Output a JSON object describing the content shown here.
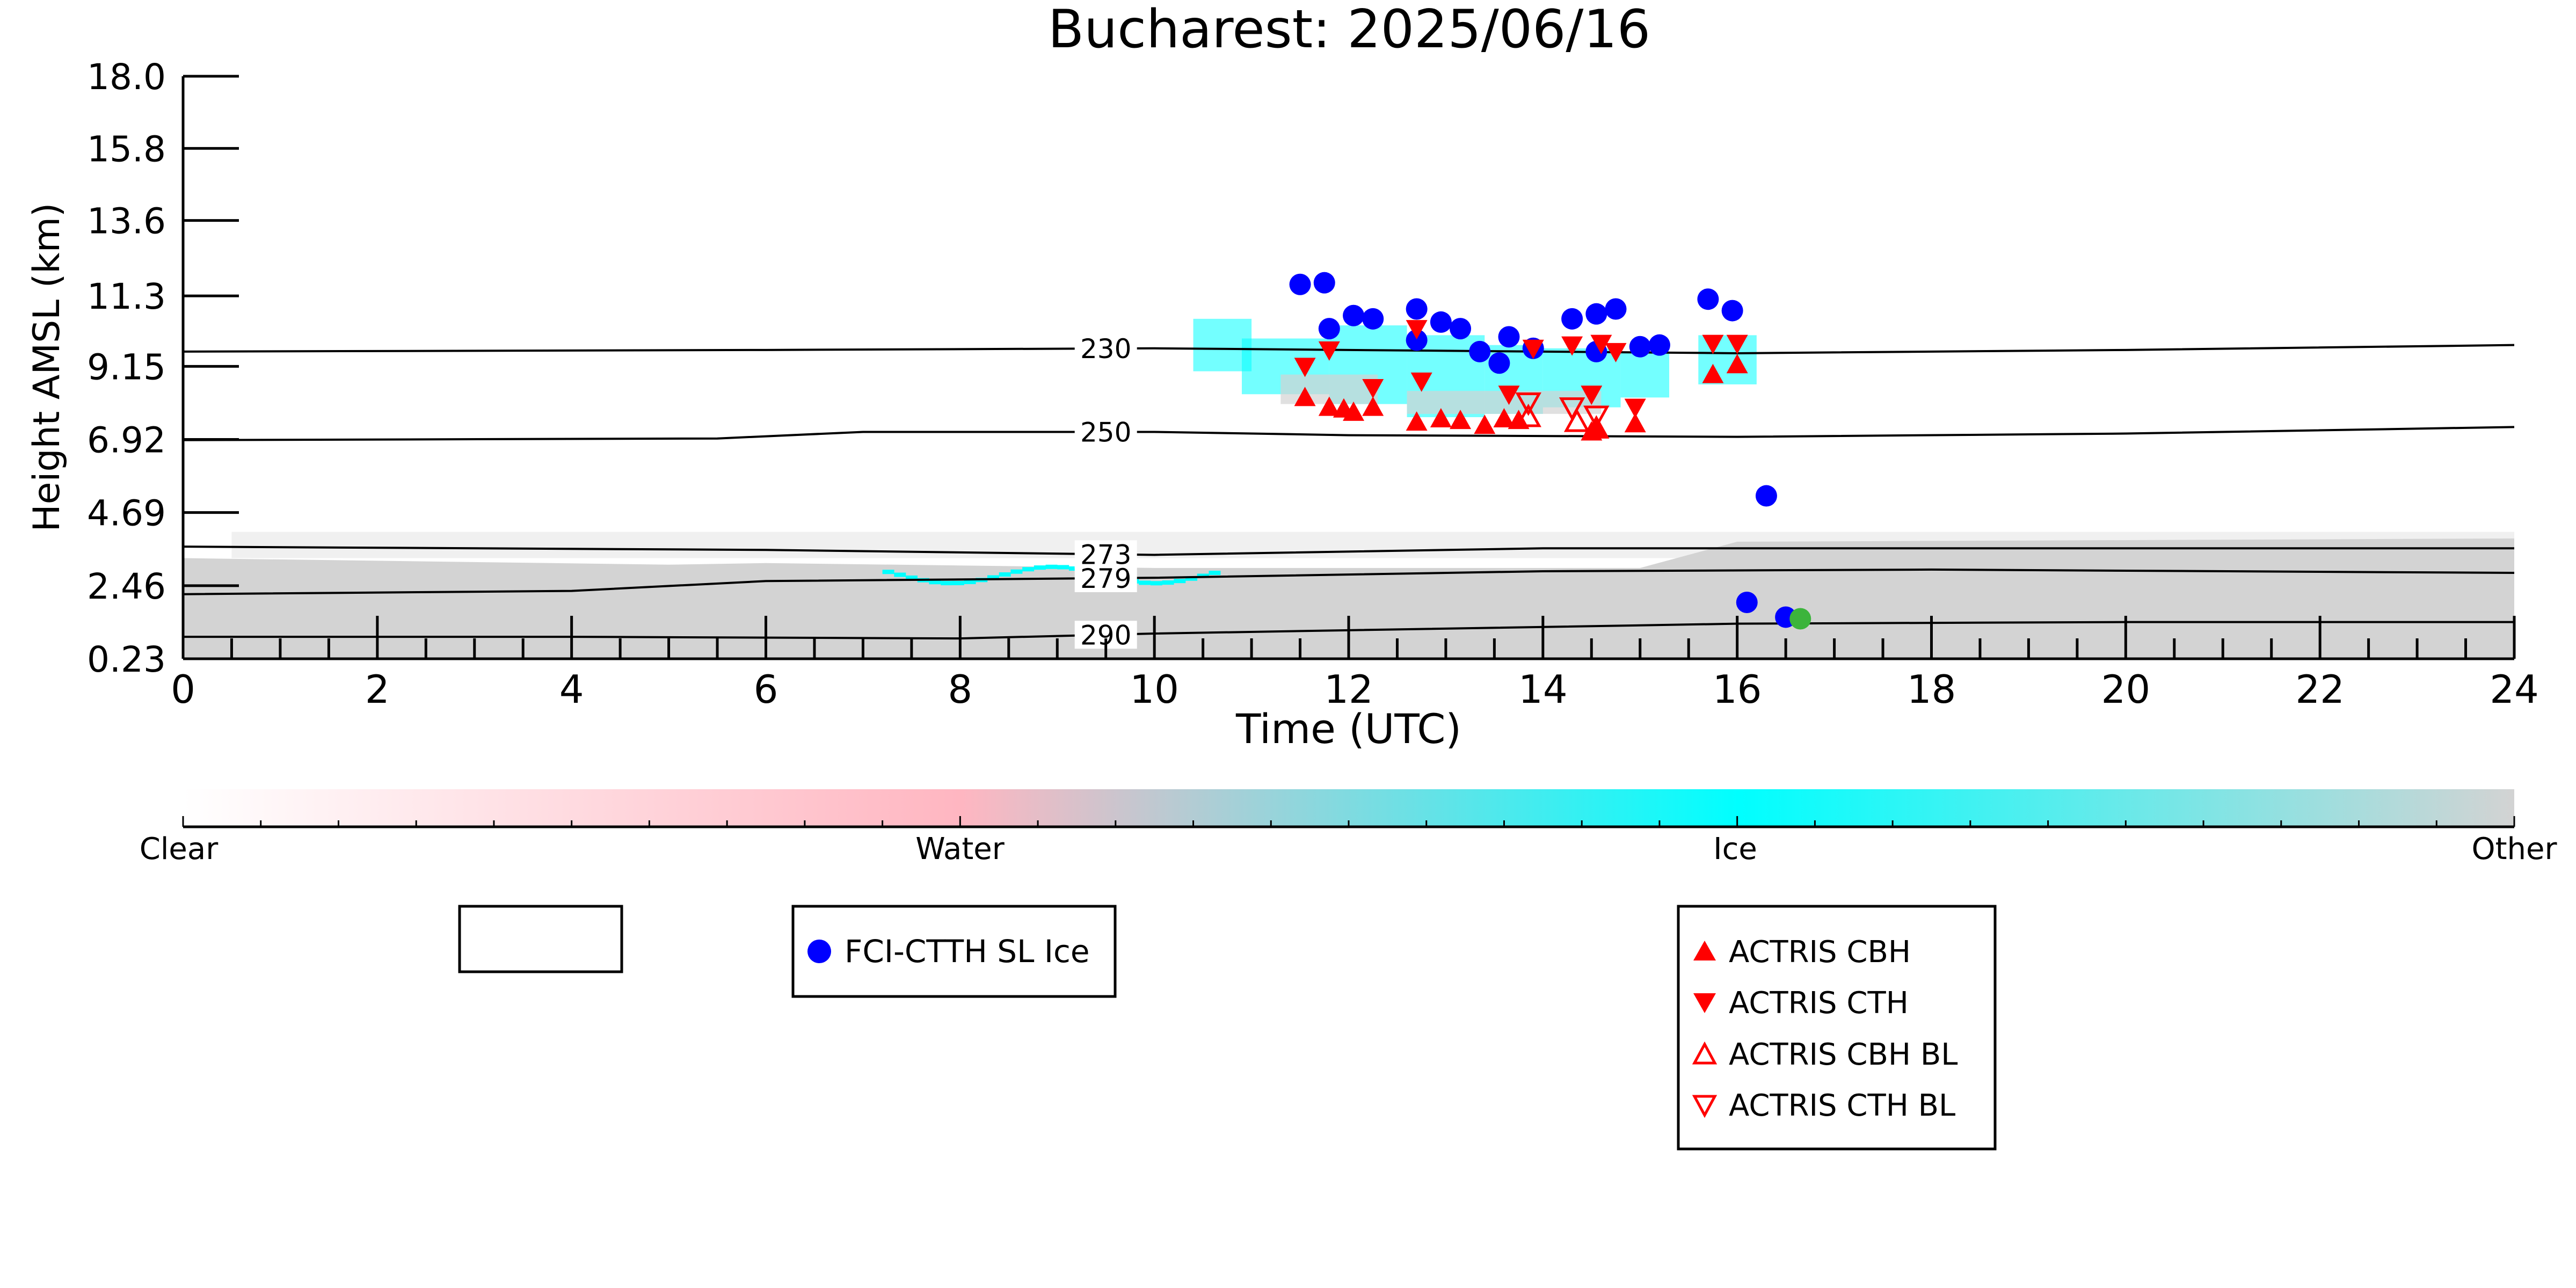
{
  "chart_data": {
    "type": "scatter",
    "title": "Bucharest: 2025/06/16",
    "xlabel": "Time (UTC)",
    "ylabel": "Height AMSL (km)",
    "xlim": [
      0,
      24
    ],
    "ylim": [
      0.23,
      18.0
    ],
    "x_ticks": [
      0,
      2,
      4,
      6,
      8,
      10,
      12,
      14,
      16,
      18,
      20,
      22,
      24
    ],
    "x_tick_labels": [
      "0",
      "2",
      "4",
      "6",
      "8",
      "10",
      "12",
      "14",
      "16",
      "18",
      "20",
      "22",
      "24"
    ],
    "y_ticks": [
      0.23,
      2.46,
      4.69,
      6.92,
      9.15,
      11.3,
      13.6,
      15.8,
      18.0
    ],
    "y_tick_labels": [
      "0.23",
      "2.46",
      "4.69",
      "6.92",
      "9.15",
      "11.3",
      "13.6",
      "15.8",
      "18.0"
    ],
    "grid": false,
    "isotherms": [
      {
        "label": "230",
        "points": [
          [
            0,
            9.6
          ],
          [
            6,
            9.65
          ],
          [
            10,
            9.7
          ],
          [
            12,
            9.65
          ],
          [
            16,
            9.55
          ],
          [
            20,
            9.65
          ],
          [
            24,
            9.8
          ]
        ]
      },
      {
        "label": "250",
        "points": [
          [
            0,
            6.9
          ],
          [
            5.5,
            6.95
          ],
          [
            7,
            7.15
          ],
          [
            10,
            7.15
          ],
          [
            12,
            7.05
          ],
          [
            16,
            7.0
          ],
          [
            20,
            7.1
          ],
          [
            24,
            7.3
          ]
        ]
      },
      {
        "label": "273",
        "points": [
          [
            0,
            3.65
          ],
          [
            6,
            3.55
          ],
          [
            10,
            3.4
          ],
          [
            14,
            3.6
          ],
          [
            18,
            3.6
          ],
          [
            24,
            3.6
          ]
        ]
      },
      {
        "label": "279",
        "points": [
          [
            0,
            2.2
          ],
          [
            4,
            2.3
          ],
          [
            6,
            2.6
          ],
          [
            10,
            2.7
          ],
          [
            14,
            2.9
          ],
          [
            18,
            2.95
          ],
          [
            24,
            2.85
          ]
        ]
      },
      {
        "label": "290",
        "points": [
          [
            0,
            0.9
          ],
          [
            4,
            0.9
          ],
          [
            8,
            0.85
          ],
          [
            10,
            1.0
          ],
          [
            12,
            1.1
          ],
          [
            16,
            1.3
          ],
          [
            20,
            1.35
          ],
          [
            24,
            1.35
          ]
        ]
      }
    ],
    "series": [
      {
        "name": "FCI-CTTH SL Ice",
        "marker": "circle",
        "color": "#0000ff",
        "points": [
          [
            11.5,
            11.65
          ],
          [
            11.75,
            11.7
          ],
          [
            11.8,
            10.3
          ],
          [
            12.05,
            10.7
          ],
          [
            12.25,
            10.6
          ],
          [
            12.7,
            10.9
          ],
          [
            12.7,
            9.95
          ],
          [
            12.95,
            10.5
          ],
          [
            13.15,
            10.3
          ],
          [
            13.35,
            9.6
          ],
          [
            13.55,
            9.25
          ],
          [
            13.65,
            10.05
          ],
          [
            13.9,
            9.7
          ],
          [
            14.3,
            10.6
          ],
          [
            14.55,
            10.75
          ],
          [
            14.55,
            9.6
          ],
          [
            14.75,
            10.9
          ],
          [
            15.0,
            9.75
          ],
          [
            15.2,
            9.8
          ],
          [
            15.7,
            11.2
          ],
          [
            15.95,
            10.85
          ],
          [
            16.3,
            5.2
          ],
          [
            16.1,
            1.95
          ],
          [
            16.5,
            1.5
          ]
        ]
      },
      {
        "name": "ACTRIS CBH",
        "marker": "triangle-up",
        "color": "#ff0000",
        "points": [
          [
            11.55,
            8.2
          ],
          [
            11.8,
            7.9
          ],
          [
            11.95,
            7.85
          ],
          [
            12.05,
            7.75
          ],
          [
            12.25,
            7.9
          ],
          [
            12.7,
            7.45
          ],
          [
            12.95,
            7.55
          ],
          [
            13.15,
            7.5
          ],
          [
            13.4,
            7.35
          ],
          [
            13.6,
            7.55
          ],
          [
            13.75,
            7.5
          ],
          [
            14.5,
            7.15
          ],
          [
            14.55,
            7.25
          ],
          [
            14.95,
            7.4
          ],
          [
            15.75,
            8.9
          ],
          [
            16.0,
            9.2
          ]
        ]
      },
      {
        "name": "ACTRIS CTH",
        "marker": "triangle-down",
        "color": "#ff0000",
        "points": [
          [
            11.55,
            9.15
          ],
          [
            11.8,
            9.65
          ],
          [
            12.25,
            8.5
          ],
          [
            12.7,
            10.3
          ],
          [
            12.75,
            8.7
          ],
          [
            13.65,
            8.3
          ],
          [
            13.9,
            9.7
          ],
          [
            14.3,
            9.8
          ],
          [
            14.6,
            9.85
          ],
          [
            14.75,
            9.6
          ],
          [
            14.5,
            8.3
          ],
          [
            14.95,
            7.9
          ],
          [
            15.75,
            9.85
          ],
          [
            16.0,
            9.85
          ]
        ]
      },
      {
        "name": "ACTRIS CBH BL",
        "marker": "triangle-up-open",
        "color": "#ff0000",
        "points": [
          [
            13.85,
            7.6
          ],
          [
            14.35,
            7.45
          ],
          [
            14.55,
            7.25
          ]
        ]
      },
      {
        "name": "ACTRIS CTH BL",
        "marker": "triangle-down-open",
        "color": "#ff0000",
        "points": [
          [
            13.85,
            8.05
          ],
          [
            14.3,
            7.9
          ],
          [
            14.55,
            7.65
          ]
        ]
      },
      {
        "name": "",
        "marker": "circle",
        "color": "#3cb43c",
        "points": [
          [
            16.65,
            1.45
          ]
        ]
      }
    ],
    "colorbar": {
      "labels": [
        "Clear",
        "Water",
        "Ice",
        "Other"
      ],
      "colors": [
        "#ffffff",
        "#ffb6c1",
        "#00ffff",
        "#d3d3d3"
      ]
    }
  },
  "legends": {
    "fci": [
      {
        "label": "FCI-CTTH SL Ice",
        "marker": "circle"
      }
    ],
    "actris": [
      {
        "label": "ACTRIS CBH",
        "marker": "triangle-up"
      },
      {
        "label": "ACTRIS CTH",
        "marker": "triangle-down"
      },
      {
        "label": "ACTRIS CBH BL",
        "marker": "triangle-up-open"
      },
      {
        "label": "ACTRIS CTH BL",
        "marker": "triangle-down-open"
      }
    ]
  },
  "colors": {
    "classification_other": "#d3d3d3",
    "classification_ice": "#00ffff",
    "classification_water": "#ffb6c1",
    "fci_marker": "#0000ff",
    "actris_marker": "#ff0000"
  }
}
